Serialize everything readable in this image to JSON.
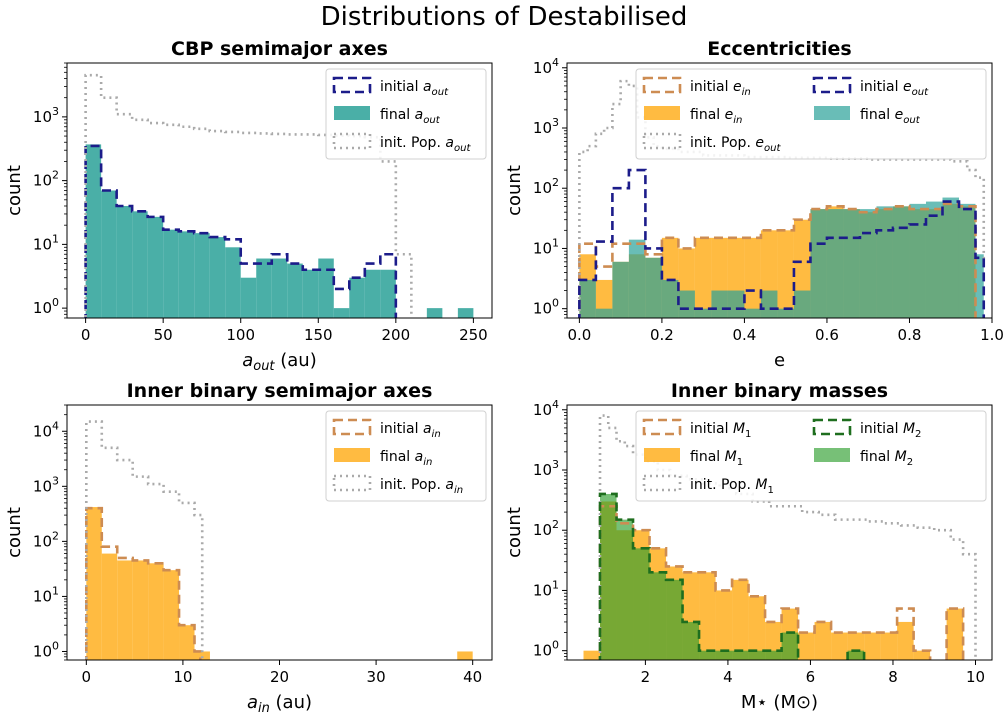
{
  "figure_title": "Distributions of Destabilised",
  "chart_data": [
    {
      "type": "histogram",
      "title": "CBP semimajor axes",
      "xlabel": "a_out (au)",
      "ylabel": "count",
      "xlim": [
        -12,
        262
      ],
      "ylim_log": [
        0.7,
        7000
      ],
      "yscale": "log",
      "xticks": [
        0,
        50,
        100,
        150,
        200,
        250
      ],
      "xtick_labels": [
        "0",
        "50",
        "100",
        "150",
        "200",
        "250"
      ],
      "yticks": [
        1,
        10,
        100,
        1000
      ],
      "legend_position": "top-right",
      "legend_cols": 1,
      "series": [
        {
          "name": "initial a_out",
          "style": "step",
          "color": "#1c1c8a",
          "dash": "9,5",
          "width": 2.6,
          "edges": [
            0,
            10,
            20,
            30,
            40,
            50,
            60,
            70,
            80,
            90,
            100,
            110,
            120,
            130,
            140,
            150,
            160,
            170,
            180,
            190,
            200
          ],
          "values": [
            350,
            70,
            40,
            33,
            27,
            17,
            16,
            15,
            13,
            12,
            5,
            5,
            7,
            5,
            4,
            4,
            2,
            3,
            5,
            7
          ]
        },
        {
          "name": "final a_out",
          "style": "filled",
          "color": "#2aa198",
          "opacity": 0.85,
          "edges": [
            0,
            10,
            20,
            30,
            40,
            50,
            60,
            70,
            80,
            90,
            100,
            110,
            120,
            130,
            140,
            150,
            160,
            170,
            180,
            190,
            200,
            210,
            220,
            230,
            240,
            250
          ],
          "values": [
            370,
            70,
            40,
            33,
            27,
            17,
            16,
            15,
            13,
            9,
            3,
            6,
            6,
            5,
            4,
            6,
            1,
            3,
            4,
            4,
            0,
            0,
            1,
            0,
            1
          ]
        },
        {
          "name": "init. Pop. a_out",
          "style": "step",
          "color": "#aaaaaa",
          "dash": "2,4",
          "width": 2.6,
          "edges": [
            0,
            10,
            20,
            30,
            40,
            50,
            60,
            70,
            80,
            90,
            100,
            110,
            120,
            130,
            140,
            150,
            160,
            170,
            180,
            190,
            200,
            210
          ],
          "values": [
            4500,
            2000,
            1100,
            900,
            800,
            750,
            700,
            650,
            600,
            580,
            560,
            550,
            540,
            530,
            530,
            520,
            510,
            500,
            480,
            200,
            7
          ]
        }
      ]
    },
    {
      "type": "histogram",
      "title": "Eccentricities",
      "xlabel": "e",
      "ylabel": "count",
      "xlim": [
        -0.03,
        1.0
      ],
      "ylim_log": [
        0.7,
        12000
      ],
      "yscale": "log",
      "xticks": [
        0,
        0.2,
        0.4,
        0.6,
        0.8,
        1.0
      ],
      "xtick_labels": [
        "0.0",
        "0.2",
        "0.4",
        "0.6",
        "0.8",
        "1.0"
      ],
      "yticks": [
        1,
        10,
        100,
        1000,
        10000
      ],
      "legend_position": "top-right",
      "legend_cols": 2,
      "series": [
        {
          "name": "initial e_in",
          "style": "step",
          "color": "#cd8c52",
          "dash": "9,5",
          "width": 2.6,
          "edges": [
            0,
            0.04,
            0.08,
            0.12,
            0.16,
            0.2,
            0.24,
            0.28,
            0.32,
            0.36,
            0.4,
            0.44,
            0.48,
            0.52,
            0.56,
            0.6,
            0.64,
            0.68,
            0.72,
            0.76,
            0.8,
            0.84,
            0.88,
            0.92,
            0.96
          ],
          "values": [
            12,
            5,
            12,
            12,
            8,
            15,
            10,
            15,
            15,
            15,
            15,
            20,
            20,
            30,
            45,
            50,
            45,
            40,
            45,
            50,
            45,
            45,
            55,
            50
          ]
        },
        {
          "name": "final e_in",
          "style": "filled",
          "color": "#ffaa11",
          "opacity": 0.8,
          "edges": [
            0,
            0.04,
            0.08,
            0.12,
            0.16,
            0.2,
            0.24,
            0.28,
            0.32,
            0.36,
            0.4,
            0.44,
            0.48,
            0.52,
            0.56,
            0.6,
            0.64,
            0.68,
            0.72,
            0.76,
            0.8,
            0.84,
            0.88,
            0.92,
            0.96
          ],
          "values": [
            8,
            3,
            6,
            8,
            7,
            15,
            10,
            15,
            15,
            15,
            15,
            20,
            20,
            30,
            45,
            50,
            45,
            40,
            45,
            50,
            45,
            45,
            55,
            50
          ]
        },
        {
          "name": "init. Pop. e_out",
          "style": "step",
          "color": "#aaaaaa",
          "dash": "2,4",
          "width": 2.6,
          "edges": [
            0,
            0.02,
            0.04,
            0.06,
            0.08,
            0.1,
            0.12,
            0.14,
            0.16,
            0.18,
            0.2,
            0.24,
            0.3,
            0.4,
            0.5,
            0.6,
            0.7,
            0.8,
            0.9,
            0.94,
            0.96,
            0.98
          ],
          "values": [
            400,
            500,
            800,
            1000,
            2500,
            6000,
            5000,
            1500,
            700,
            500,
            450,
            400,
            350,
            330,
            320,
            310,
            300,
            300,
            280,
            200,
            150,
            6
          ]
        },
        {
          "name": "initial e_out",
          "style": "step",
          "color": "#1c1c8a",
          "dash": "9,5",
          "width": 2.6,
          "edges": [
            0,
            0.04,
            0.08,
            0.12,
            0.16,
            0.2,
            0.24,
            0.28,
            0.32,
            0.36,
            0.4,
            0.44,
            0.48,
            0.52,
            0.56,
            0.6,
            0.64,
            0.68,
            0.72,
            0.76,
            0.8,
            0.84,
            0.88,
            0.92,
            0.96,
            0.98
          ],
          "values": [
            3,
            13,
            100,
            200,
            10,
            3,
            1,
            1,
            1,
            1,
            2,
            1,
            1,
            6,
            12,
            15,
            15,
            18,
            20,
            22,
            25,
            35,
            60,
            45,
            7
          ]
        },
        {
          "name": "final e_out",
          "style": "filled",
          "color": "#2aa198",
          "opacity": 0.7,
          "edges": [
            0,
            0.04,
            0.08,
            0.12,
            0.16,
            0.2,
            0.24,
            0.28,
            0.32,
            0.36,
            0.4,
            0.44,
            0.48,
            0.52,
            0.56,
            0.6,
            0.64,
            0.68,
            0.72,
            0.76,
            0.8,
            0.84,
            0.88,
            0.92,
            0.96,
            0.98
          ],
          "values": [
            3,
            1,
            6,
            14,
            7,
            3,
            2,
            1,
            2,
            2,
            1,
            2,
            1,
            2,
            45,
            45,
            45,
            45,
            50,
            50,
            55,
            60,
            70,
            55,
            8
          ]
        }
      ]
    },
    {
      "type": "histogram",
      "title": "Inner binary semimajor axes",
      "xlabel": "a_in (au)",
      "ylabel": "count",
      "xlim": [
        -2,
        42
      ],
      "ylim_log": [
        0.7,
        30000
      ],
      "yscale": "log",
      "xticks": [
        0,
        10,
        20,
        30,
        40
      ],
      "xtick_labels": [
        "0",
        "10",
        "20",
        "30",
        "40"
      ],
      "yticks": [
        1,
        10,
        100,
        1000,
        10000
      ],
      "legend_position": "top-right",
      "legend_cols": 1,
      "series": [
        {
          "name": "initial a_in",
          "style": "step",
          "color": "#cd8c52",
          "dash": "9,5",
          "width": 2.6,
          "edges": [
            0,
            1.6,
            3.2,
            4.8,
            6.4,
            8,
            9.6,
            11.2,
            11.8
          ],
          "values": [
            400,
            80,
            50,
            45,
            40,
            30,
            3,
            1
          ]
        },
        {
          "name": "final a_in",
          "style": "filled",
          "color": "#ffaa11",
          "opacity": 0.8,
          "edges": [
            0,
            1.6,
            3.2,
            4.8,
            6.4,
            8,
            9.6,
            11.2,
            12.8,
            38.4,
            40
          ],
          "values": [
            420,
            60,
            45,
            45,
            40,
            30,
            3,
            1,
            0,
            1
          ]
        },
        {
          "name": "init. Pop. a_in",
          "style": "step",
          "color": "#aaaaaa",
          "dash": "2,4",
          "width": 2.6,
          "edges": [
            0,
            1.6,
            3.2,
            4.8,
            6.4,
            8,
            9.6,
            11.2,
            12
          ],
          "values": [
            15000,
            5000,
            3000,
            1500,
            1100,
            800,
            500,
            300
          ]
        }
      ]
    },
    {
      "type": "histogram",
      "title": "Inner binary masses",
      "xlabel": "M⋆ (M⊙)",
      "ylabel": "count",
      "xlim": [
        0.1,
        10.4
      ],
      "ylim_log": [
        0.7,
        12000
      ],
      "yscale": "log",
      "xticks": [
        2,
        4,
        6,
        8,
        10
      ],
      "xtick_labels": [
        "2",
        "4",
        "6",
        "8",
        "10"
      ],
      "yticks": [
        1,
        10,
        100,
        1000,
        10000
      ],
      "legend_position": "top-right",
      "legend_cols": 2,
      "series": [
        {
          "name": "initial M1",
          "style": "step",
          "color": "#cd8c52",
          "dash": "9,5",
          "width": 2.6,
          "edges": [
            0.9,
            1.3,
            1.7,
            2.1,
            2.5,
            2.9,
            3.3,
            3.7,
            4.1,
            4.5,
            4.9,
            5.3,
            5.7,
            6.1,
            6.5,
            6.9,
            7.3,
            7.7,
            8.1,
            8.5,
            8.9,
            9.3,
            9.7
          ],
          "values": [
            250,
            130,
            100,
            50,
            25,
            20,
            20,
            10,
            15,
            8,
            3,
            5,
            2,
            3,
            2,
            2,
            2,
            2,
            5,
            1,
            0,
            5
          ]
        },
        {
          "name": "final M1",
          "style": "filled",
          "color": "#ffaa11",
          "opacity": 0.8,
          "edges": [
            0.5,
            0.9,
            1.3,
            1.7,
            2.1,
            2.5,
            2.9,
            3.3,
            3.7,
            4.1,
            4.5,
            4.9,
            5.3,
            5.7,
            6.1,
            6.5,
            6.9,
            7.3,
            7.7,
            8.1,
            8.5,
            8.9,
            9.3,
            9.7
          ],
          "values": [
            1,
            300,
            100,
            100,
            50,
            25,
            20,
            20,
            10,
            15,
            8,
            3,
            5,
            2,
            3,
            2,
            2,
            2,
            2,
            3,
            1,
            0,
            5
          ]
        },
        {
          "name": "init. Pop. M1",
          "style": "step",
          "color": "#aaaaaa",
          "dash": "2,4",
          "width": 2.6,
          "edges": [
            0.9,
            1.1,
            1.3,
            1.5,
            1.7,
            2.0,
            2.3,
            2.6,
            3.0,
            3.4,
            3.8,
            4.2,
            4.6,
            5.0,
            5.4,
            5.8,
            6.2,
            6.6,
            7.0,
            7.4,
            7.8,
            8.2,
            8.6,
            9.0,
            9.4,
            9.7,
            10.0
          ],
          "values": [
            8000,
            5000,
            3000,
            2500,
            1800,
            1400,
            1000,
            800,
            700,
            600,
            500,
            400,
            300,
            250,
            250,
            200,
            180,
            150,
            150,
            140,
            130,
            120,
            110,
            100,
            70,
            40
          ]
        },
        {
          "name": "initial M2",
          "style": "step",
          "color": "#1e6e1e",
          "dash": "9,5",
          "width": 2.6,
          "edges": [
            0.9,
            1.3,
            1.7,
            2.1,
            2.5,
            2.9,
            3.3,
            3.7,
            4.1,
            4.5,
            4.9,
            5.3,
            5.7,
            6.9,
            7.3
          ],
          "values": [
            400,
            150,
            50,
            20,
            15,
            3,
            1,
            1,
            1,
            1,
            1,
            2,
            0,
            1
          ]
        },
        {
          "name": "final M2",
          "style": "filled",
          "color": "#2e9e2e",
          "opacity": 0.65,
          "edges": [
            0.9,
            1.3,
            1.7,
            2.1,
            2.5,
            2.9,
            3.3,
            3.7,
            4.1,
            4.5,
            4.9,
            5.3,
            5.7,
            6.9,
            7.3
          ],
          "values": [
            400,
            150,
            50,
            20,
            15,
            3,
            1,
            1,
            1,
            1,
            1,
            2,
            0,
            1
          ]
        }
      ]
    }
  ]
}
